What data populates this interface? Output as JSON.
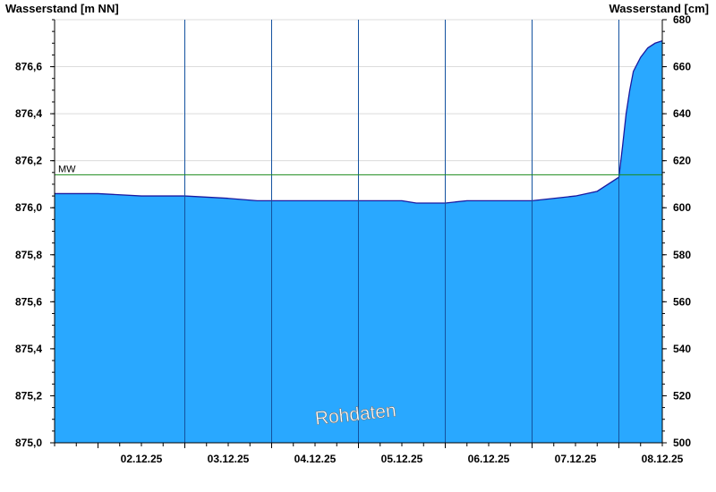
{
  "chart_data": {
    "type": "area",
    "y_left_title": "Wasserstand [m NN]",
    "y_right_title": "Wasserstand [cm]",
    "y_left_range": [
      875.0,
      876.8
    ],
    "y_left_ticks": [
      "875,0",
      "875,2",
      "875,4",
      "875,6",
      "875,8",
      "876,0",
      "876,2",
      "876,4",
      "876,6"
    ],
    "y_left_tick_values": [
      875.0,
      875.2,
      875.4,
      875.6,
      875.8,
      876.0,
      876.2,
      876.4,
      876.6
    ],
    "y_right_ticks": [
      "500",
      "520",
      "540",
      "560",
      "580",
      "600",
      "620",
      "640",
      "660",
      "680"
    ],
    "y_right_tick_values": [
      500,
      520,
      540,
      560,
      580,
      600,
      620,
      640,
      660,
      680
    ],
    "x_range": [
      "01.12.25 12:00",
      "08.12.25 12:00"
    ],
    "x_tick_labels": [
      "02.12.25",
      "03.12.25",
      "04.12.25",
      "05.12.25",
      "06.12.25",
      "07.12.25",
      "08.12.25"
    ],
    "mean_line": {
      "label": "MW",
      "value": 876.14,
      "color": "#1a8a1a"
    },
    "watermark": "Rohdaten",
    "grid": true,
    "fill_color": "#29a8ff",
    "line_color": "#1a1aa0",
    "series": [
      {
        "x": [
          "01.12.25 12:00",
          "02.12.25 00:00",
          "02.12.25 12:00",
          "03.12.25 00:00",
          "03.12.25 12:00",
          "03.12.25 20:00",
          "04.12.25 12:00",
          "04.12.25 22:00",
          "05.12.25 00:00",
          "05.12.25 12:00",
          "05.12.25 16:00",
          "06.12.25 00:00",
          "06.12.25 06:00",
          "06.12.25 12:00",
          "06.12.25 18:00",
          "07.12.25 00:00",
          "07.12.25 06:00",
          "07.12.25 12:00",
          "07.12.25 18:00",
          "08.12.25 00:00",
          "08.12.25 01:00",
          "08.12.25 02:00",
          "08.12.25 03:00",
          "08.12.25 04:00",
          "08.12.25 06:00",
          "08.12.25 08:00",
          "08.12.25 10:00",
          "08.12.25 12:00"
        ],
        "values": [
          876.06,
          876.06,
          876.05,
          876.05,
          876.04,
          876.03,
          876.03,
          876.03,
          876.03,
          876.03,
          876.02,
          876.02,
          876.03,
          876.03,
          876.03,
          876.03,
          876.04,
          876.05,
          876.07,
          876.13,
          876.26,
          876.4,
          876.5,
          876.58,
          876.64,
          876.68,
          876.7,
          876.71
        ]
      }
    ]
  }
}
